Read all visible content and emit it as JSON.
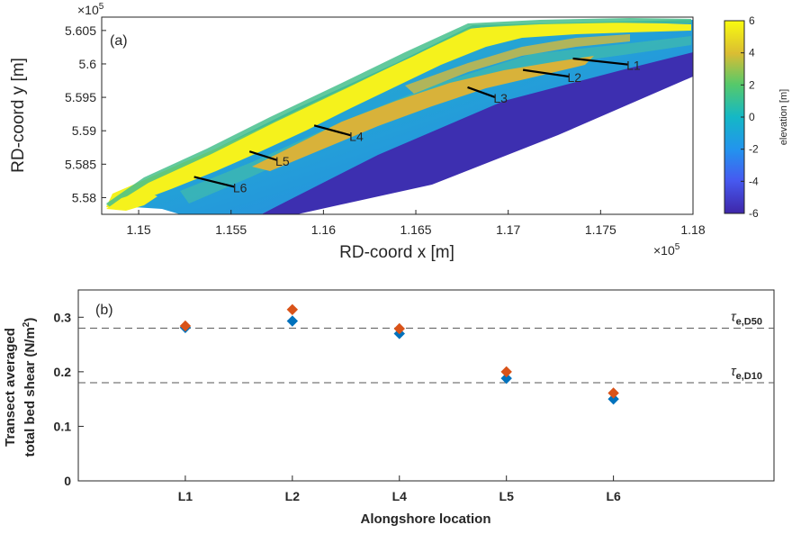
{
  "chart_data": [
    {
      "type": "heatmap",
      "panel_label": "(a)",
      "xlabel": "RD-coord x [m]",
      "ylabel": "RD-coord y [m]",
      "x_multiplier": "×10",
      "x_exponent": "5",
      "y_multiplier": "×10",
      "y_exponent": "5",
      "xlim": [
        1.148,
        1.18
      ],
      "ylim": [
        5.5775,
        5.607
      ],
      "xticks": [
        "1.15",
        "1.155",
        "1.16",
        "1.165",
        "1.17",
        "1.175",
        "1.18"
      ],
      "yticks": [
        "5.58",
        "5.585",
        "5.59",
        "5.595",
        "5.6",
        "5.605"
      ],
      "colorbar": {
        "label": "elevation [m]",
        "range": [
          -6,
          6
        ],
        "ticks": [
          "6",
          "4",
          "2",
          "0",
          "-2",
          "-4",
          "-6"
        ]
      },
      "transects": [
        {
          "name": "L1",
          "x1": 1.1735,
          "y1": 5.6008,
          "x2": 1.1765,
          "y2": 5.5999
        },
        {
          "name": "L2",
          "x1": 1.1708,
          "y1": 5.5991,
          "x2": 1.1733,
          "y2": 5.5981
        },
        {
          "name": "L3",
          "x1": 1.1678,
          "y1": 5.5965,
          "x2": 1.1693,
          "y2": 5.595
        },
        {
          "name": "L4",
          "x1": 1.1595,
          "y1": 5.5908,
          "x2": 1.1615,
          "y2": 5.5893
        },
        {
          "name": "L5",
          "x1": 1.156,
          "y1": 5.5869,
          "x2": 1.1575,
          "y2": 5.5856
        },
        {
          "name": "L6",
          "x1": 1.153,
          "y1": 5.5831,
          "x2": 1.1552,
          "y2": 5.5816
        }
      ]
    },
    {
      "type": "scatter",
      "panel_label": "(b)",
      "xlabel": "Alongshore location",
      "ylabel_line1": "Transect averaged",
      "ylabel_line2": "total bed shear (N/m",
      "ylabel_sup": "2",
      "ylabel_close": ")",
      "categories": [
        "L1",
        "L2",
        "L4",
        "L5",
        "L6"
      ],
      "ylim": [
        0,
        0.35
      ],
      "yticks": [
        "0",
        "0.1",
        "0.2",
        "0.3"
      ],
      "series": [
        {
          "color": "#0072BD",
          "values": [
            0.281,
            0.293,
            0.27,
            0.188,
            0.15
          ]
        },
        {
          "color": "#D95319",
          "values": [
            0.284,
            0.314,
            0.279,
            0.2,
            0.161
          ]
        }
      ],
      "thresholds": [
        {
          "value": 0.28,
          "label_base": "τ",
          "label_sub": "e,D50"
        },
        {
          "value": 0.18,
          "label_base": "τ",
          "label_sub": "e,D10"
        }
      ]
    }
  ]
}
